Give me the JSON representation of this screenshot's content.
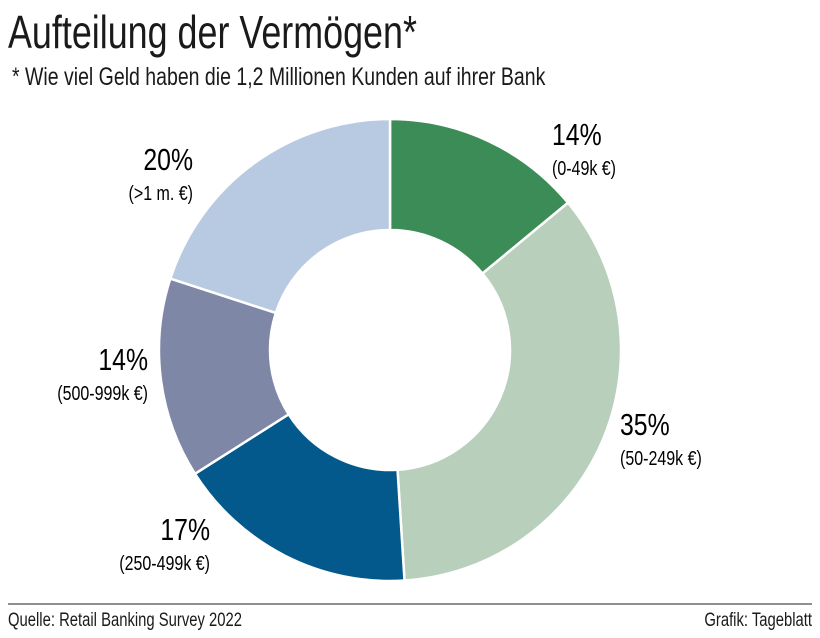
{
  "chart_data": {
    "type": "pie",
    "donut": true,
    "title": "Aufteilung der Vermögen*",
    "subtitle": "* Wie viel Geld haben die 1,2 Millionen Kunden auf ihrer Bank",
    "slices": [
      {
        "pct_label": "14%",
        "range_label": "(0-49k €)",
        "value": 14,
        "color": "#3b8c57"
      },
      {
        "pct_label": "35%",
        "range_label": "(50-249k €)",
        "value": 35,
        "color": "#b7cfbb"
      },
      {
        "pct_label": "17%",
        "range_label": "(250-499k €)",
        "value": 17,
        "color": "#03598b"
      },
      {
        "pct_label": "14%",
        "range_label": "(500-999k €)",
        "value": 14,
        "color": "#7f87a7"
      },
      {
        "pct_label": "20%",
        "range_label": "(>1 m. €)",
        "value": 20,
        "color": "#b8cae2"
      }
    ],
    "start": "top",
    "direction": "clockwise"
  },
  "footer": {
    "source": "Quelle: Retail Banking Survey 2022",
    "credit": "Grafik: Tageblatt"
  }
}
